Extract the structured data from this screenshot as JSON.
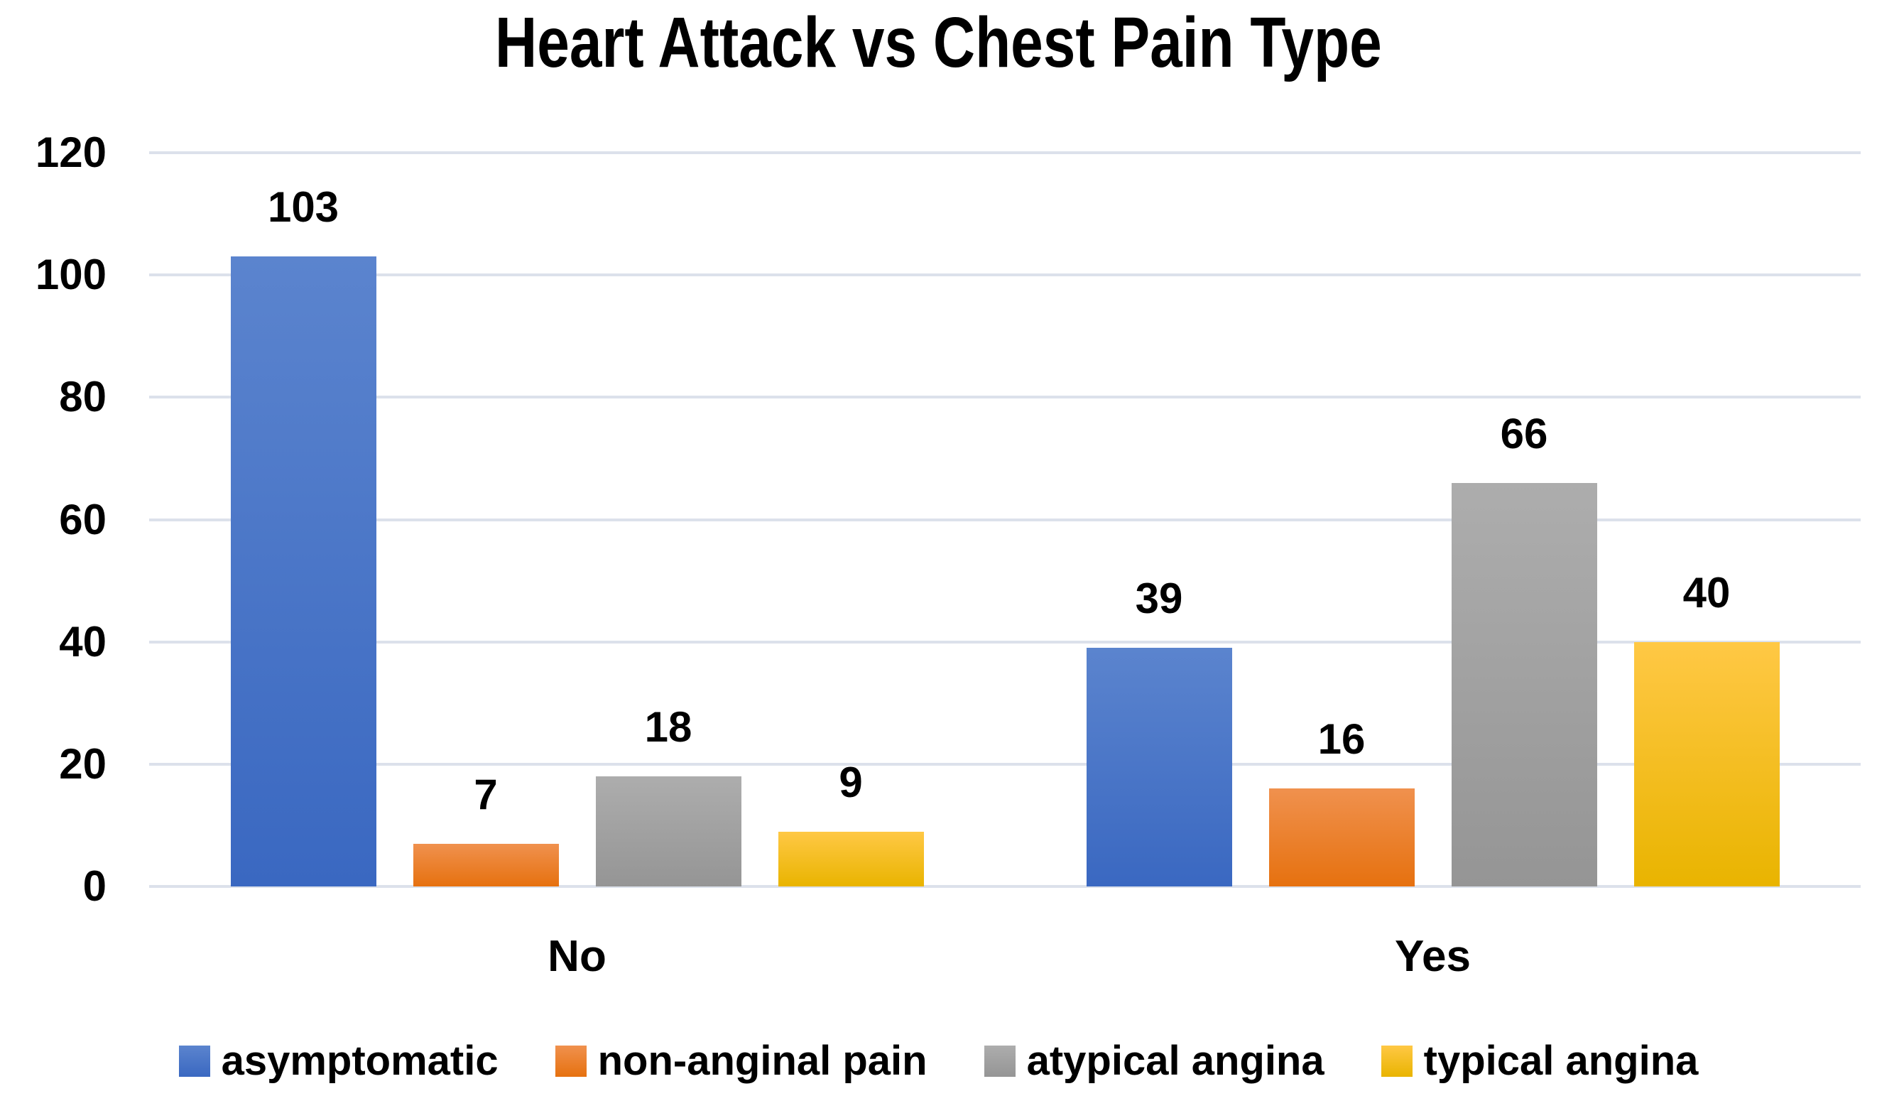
{
  "chart_data": {
    "type": "bar",
    "title": "Heart Attack vs Chest Pain Type",
    "categories": [
      "No",
      "Yes"
    ],
    "series": [
      {
        "name": "asymptomatic",
        "values": [
          103,
          39
        ],
        "color": "#4472C4",
        "gradient_top": "#5B84CE",
        "gradient_bottom": "#3A68C1"
      },
      {
        "name": "non-anginal pain",
        "values": [
          7,
          16
        ],
        "color": "#ED7D31",
        "gradient_top": "#F0914E",
        "gradient_bottom": "#E6710F"
      },
      {
        "name": "atypical angina",
        "values": [
          18,
          66
        ],
        "color": "#A5A5A5",
        "gradient_top": "#ADADAD",
        "gradient_bottom": "#959595"
      },
      {
        "name": "typical angina",
        "values": [
          9,
          40
        ],
        "color": "#FFC000",
        "gradient_top": "#FFC845",
        "gradient_bottom": "#E9B400"
      }
    ],
    "xlabel": "",
    "ylabel": "",
    "ylim": [
      0,
      120
    ],
    "yticks": [
      0,
      20,
      40,
      60,
      80,
      100,
      120
    ],
    "grid": true,
    "value_labels": true,
    "legend_position": "bottom"
  },
  "style": {
    "gridline_color": "#DCE1EB",
    "text_color": "#000000",
    "background_color": "#FFFFFF"
  }
}
